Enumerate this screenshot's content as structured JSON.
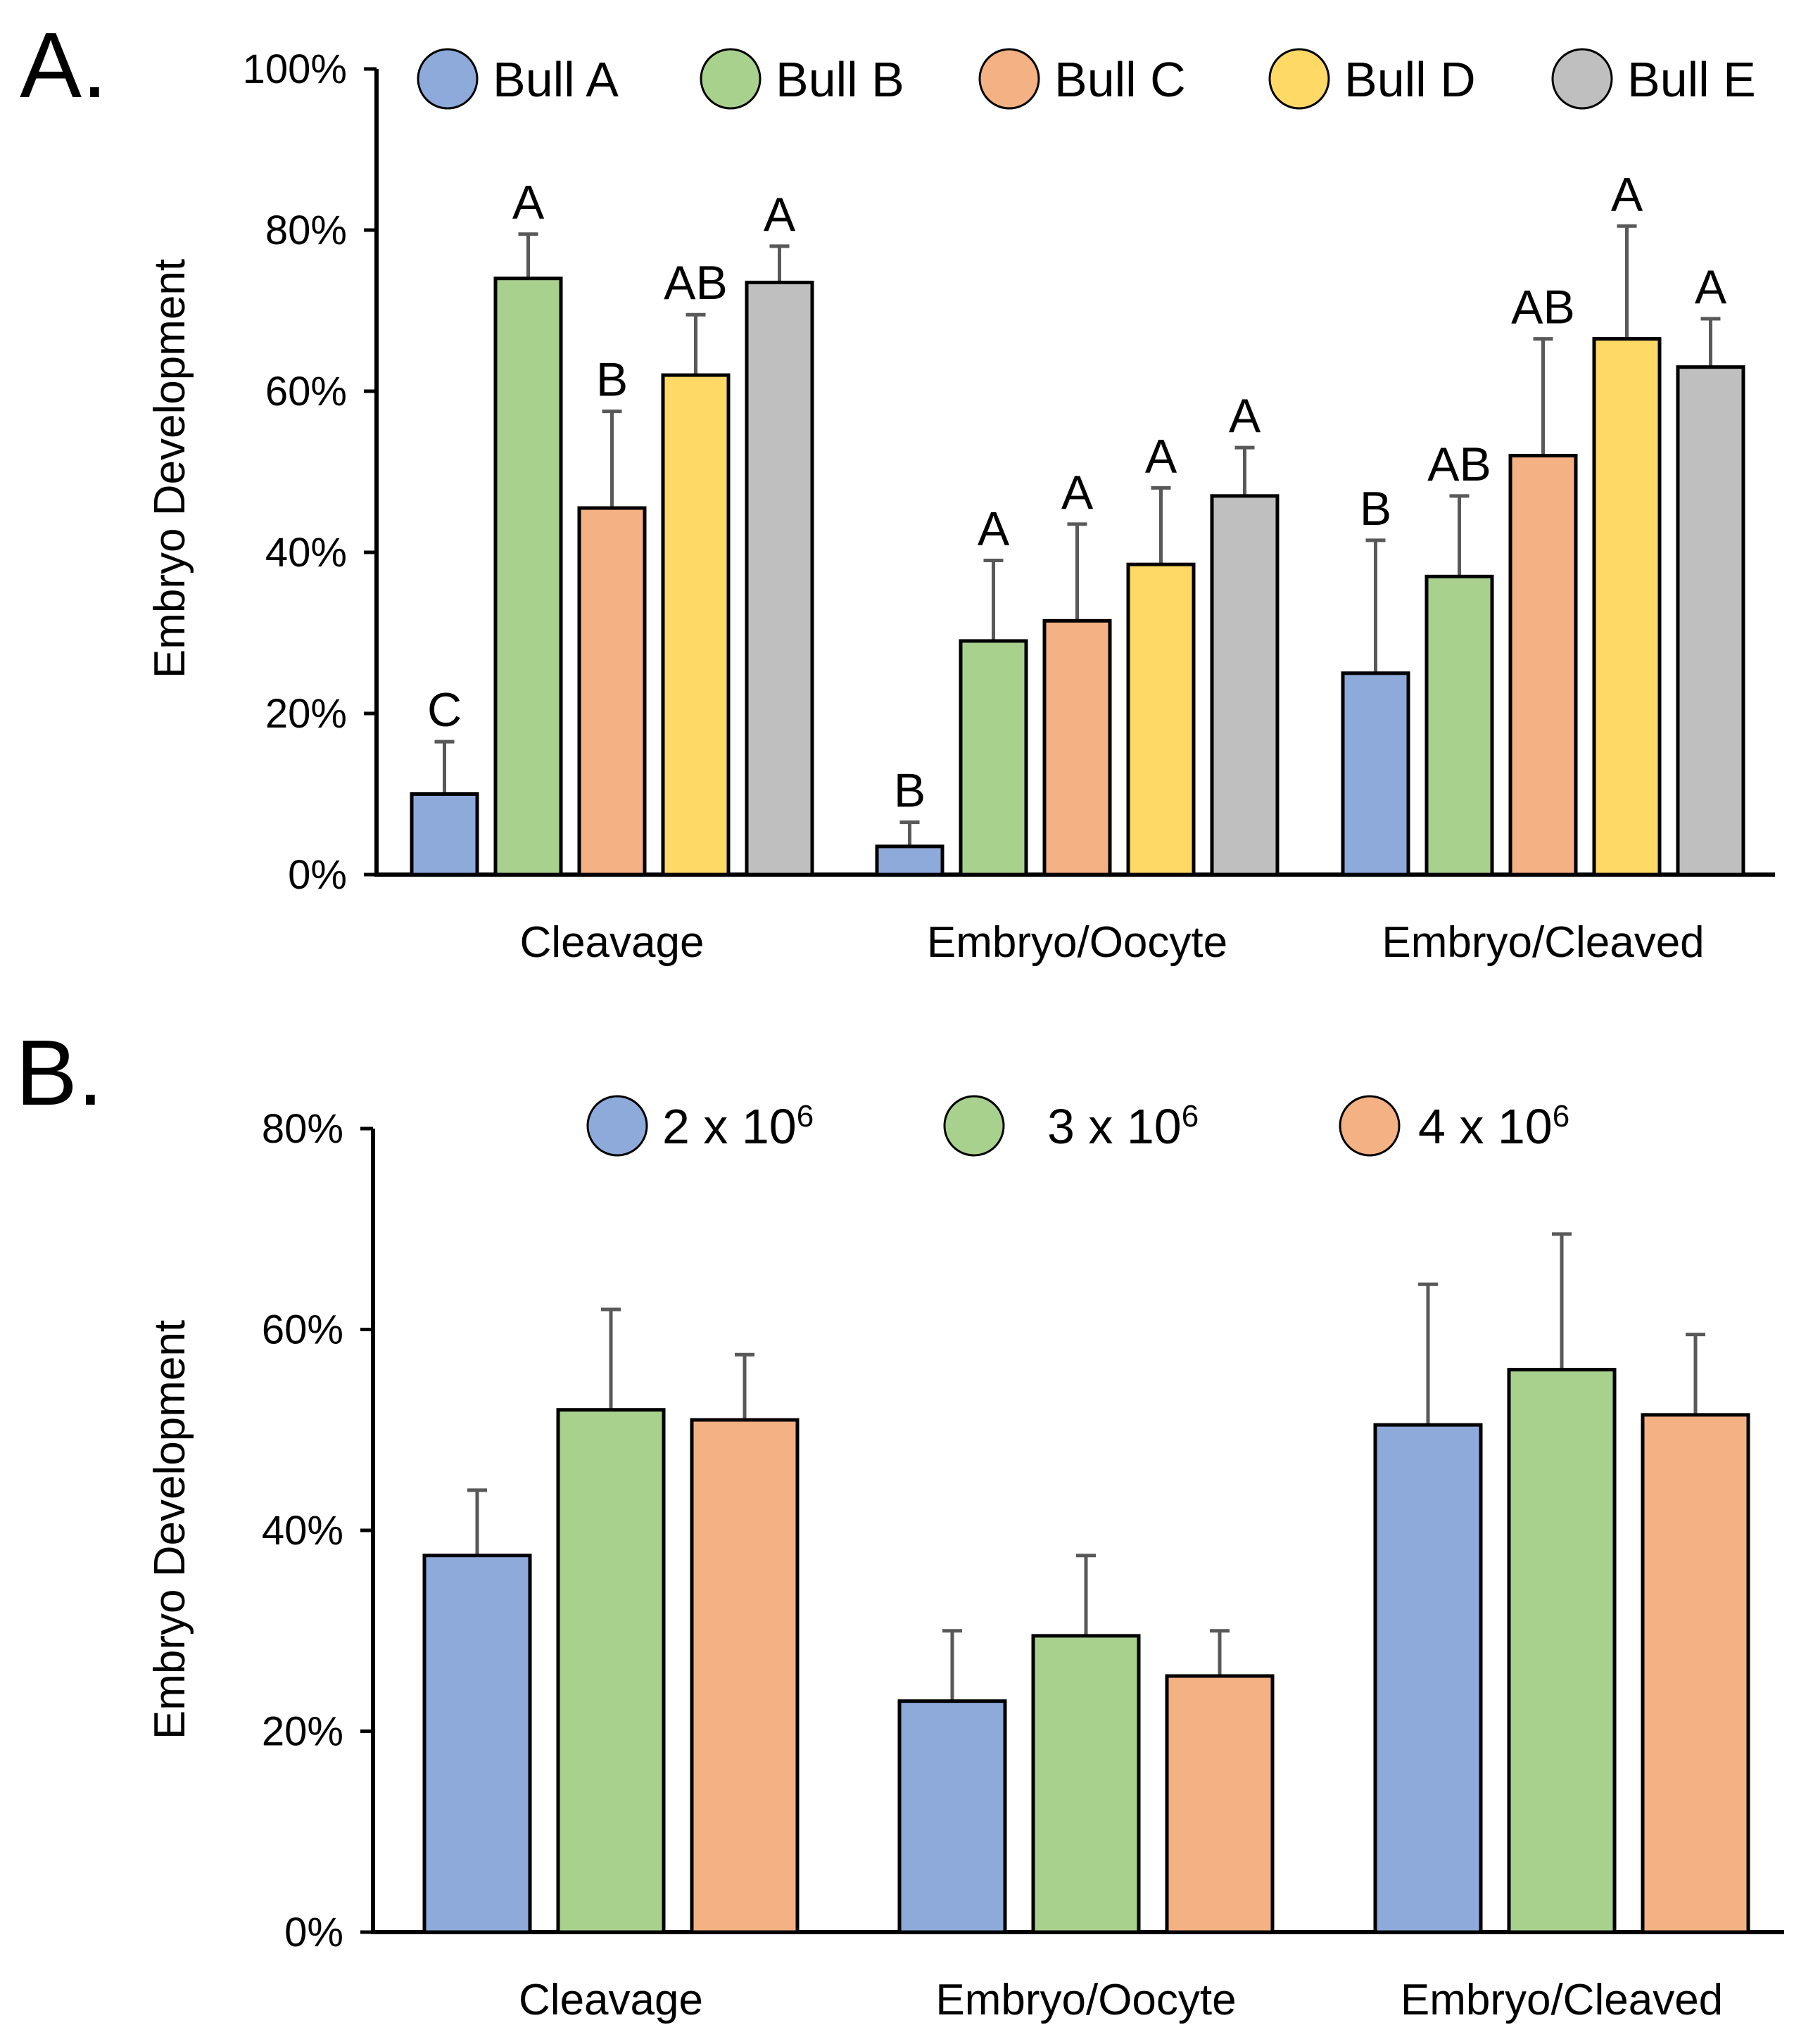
{
  "chart_data": [
    {
      "panel_label": "A.",
      "type": "bar",
      "ylabel": "Embryo Development",
      "ylim": [
        0,
        1.0
      ],
      "yticks": [
        0,
        0.2,
        0.4,
        0.6,
        0.8,
        1.0
      ],
      "ytick_labels": [
        "0%",
        "20%",
        "40%",
        "60%",
        "80%",
        "100%"
      ],
      "categories": [
        "Cleavage",
        "Embryo/Oocyte",
        "Embryo/Cleaved"
      ],
      "legend_position": "top",
      "series": [
        {
          "name": "Bull A",
          "color": "#8eaadb",
          "values": [
            0.1,
            0.035,
            0.25
          ],
          "errors": [
            0.065,
            0.03,
            0.165
          ],
          "letters": [
            "C",
            "B",
            "B"
          ]
        },
        {
          "name": "Bull B",
          "color": "#a9d18e",
          "values": [
            0.74,
            0.29,
            0.37
          ],
          "errors": [
            0.055,
            0.1,
            0.1
          ],
          "letters": [
            "A",
            "A",
            "AB"
          ]
        },
        {
          "name": "Bull C",
          "color": "#f4b183",
          "values": [
            0.455,
            0.315,
            0.52
          ],
          "errors": [
            0.12,
            0.12,
            0.145
          ],
          "letters": [
            "B",
            "A",
            "AB"
          ]
        },
        {
          "name": "Bull D",
          "color": "#ffd966",
          "values": [
            0.62,
            0.385,
            0.665
          ],
          "errors": [
            0.075,
            0.095,
            0.14
          ],
          "letters": [
            "AB",
            "A",
            "A"
          ]
        },
        {
          "name": "Bull E",
          "color": "#bfbfbf",
          "values": [
            0.735,
            0.47,
            0.63
          ],
          "errors": [
            0.045,
            0.06,
            0.06
          ],
          "letters": [
            "A",
            "A",
            "A"
          ]
        }
      ]
    },
    {
      "panel_label": "B.",
      "type": "bar",
      "ylabel": "Embryo Development",
      "ylim": [
        0,
        0.8
      ],
      "yticks": [
        0,
        0.2,
        0.4,
        0.6,
        0.8
      ],
      "ytick_labels": [
        "0%",
        "20%",
        "40%",
        "60%",
        "80%"
      ],
      "categories": [
        "Cleavage",
        "Embryo/Oocyte",
        "Embryo/Cleaved"
      ],
      "legend_position": "top",
      "series": [
        {
          "name": "2 x 10",
          "exp": "6",
          "color": "#8eaadb",
          "values": [
            0.375,
            0.23,
            0.505
          ],
          "errors": [
            0.065,
            0.07,
            0.14
          ]
        },
        {
          "name": "3 x 10",
          "exp": "6",
          "color": "#a9d18e",
          "values": [
            0.52,
            0.295,
            0.56
          ],
          "errors": [
            0.1,
            0.08,
            0.135
          ]
        },
        {
          "name": "4 x 10",
          "exp": "6",
          "color": "#f4b183",
          "values": [
            0.51,
            0.255,
            0.515
          ],
          "errors": [
            0.065,
            0.045,
            0.08
          ]
        }
      ]
    }
  ]
}
